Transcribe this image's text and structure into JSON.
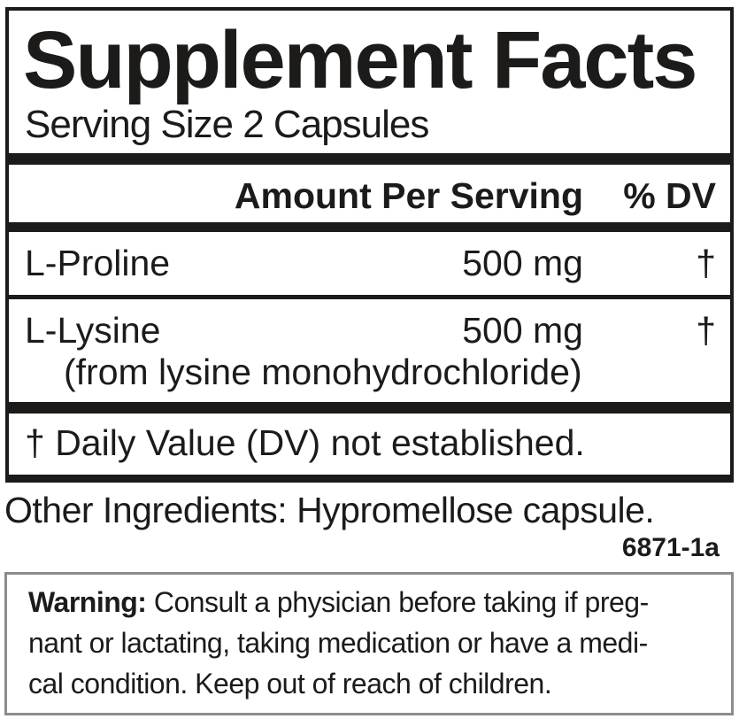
{
  "label": {
    "title": "Supplement Facts",
    "serving_size": "Serving Size 2 Capsules",
    "header": {
      "amount": "Amount Per Serving",
      "dv": "% DV"
    },
    "rows": [
      {
        "name": "L-Proline",
        "amount": "500 mg",
        "dv": "†"
      },
      {
        "name": "L-Lysine",
        "amount": "500 mg",
        "dv": "†",
        "note": "(from lysine monohydrochloride)"
      }
    ],
    "footnote": "† Daily Value (DV) not established."
  },
  "other_ingredients": "Other Ingredients: Hypromellose capsule.",
  "product_code": "6871-1a",
  "warning": {
    "label": "Warning:",
    "text": "Consult a physician before taking if pregnant or lactating, taking medication or have a medical condition. Keep out of reach of children.",
    "lines": [
      "Consult a physician before taking if preg-",
      "nant or lactating, taking medication or have a medi-",
      "cal condition. Keep out of reach of children."
    ]
  },
  "colors": {
    "ink": "#1c1b1a",
    "warning_border": "#8c8c8c"
  }
}
